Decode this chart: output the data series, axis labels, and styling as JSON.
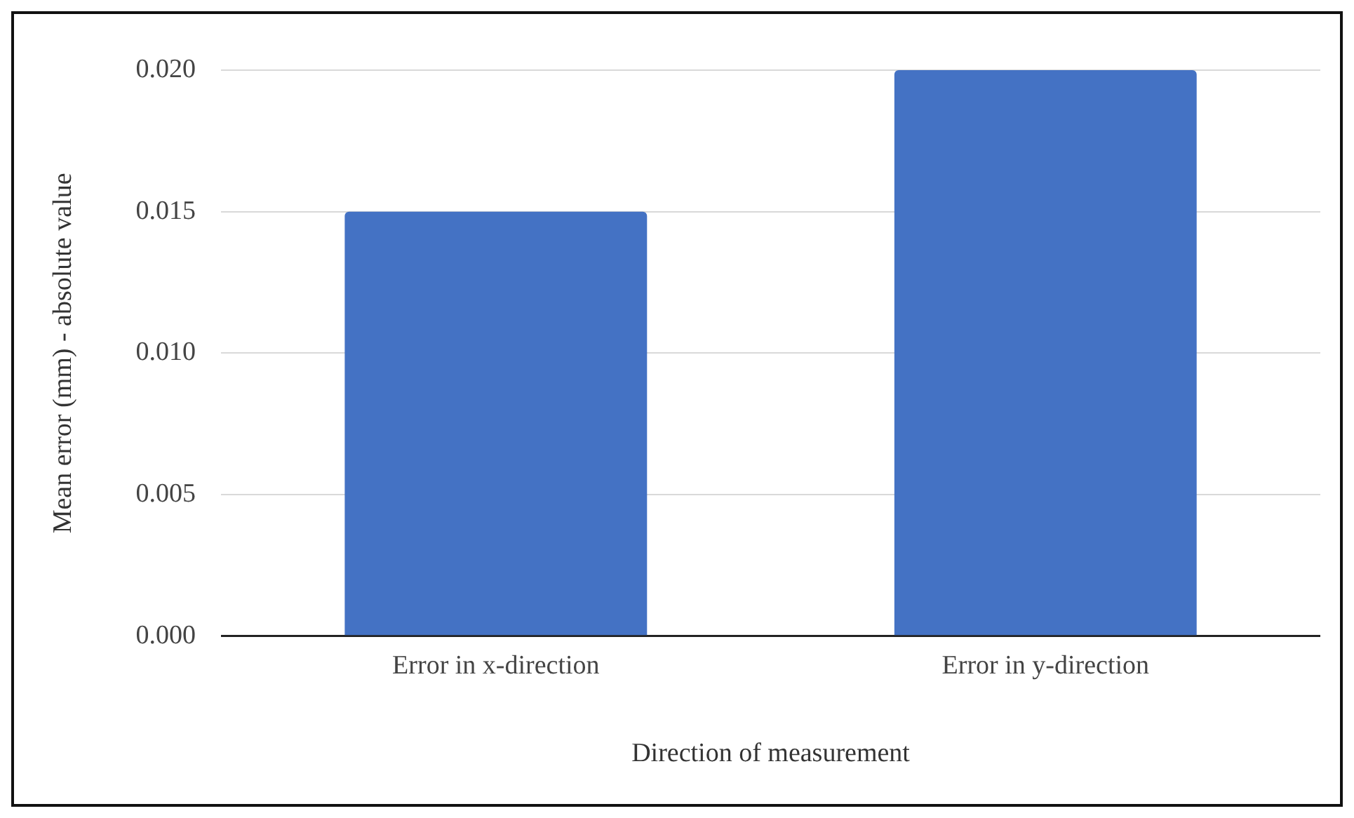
{
  "chart_data": {
    "type": "bar",
    "xlabel": "Direction of measurement",
    "ylabel": "Mean error (mm) - absolute value",
    "categories": [
      "Error in x-direction",
      "Error in y-direction"
    ],
    "values": [
      0.015,
      0.02
    ],
    "color": "#4472c4",
    "ylim": [
      0,
      0.02
    ],
    "yticks": [
      {
        "value": 0,
        "label": "0.000"
      },
      {
        "value": 0.005,
        "label": "0.005"
      },
      {
        "value": 0.01,
        "label": "0.010"
      },
      {
        "value": 0.015,
        "label": "0.015"
      },
      {
        "value": 0.02,
        "label": "0.020"
      }
    ],
    "grid": "y",
    "legend": false
  }
}
